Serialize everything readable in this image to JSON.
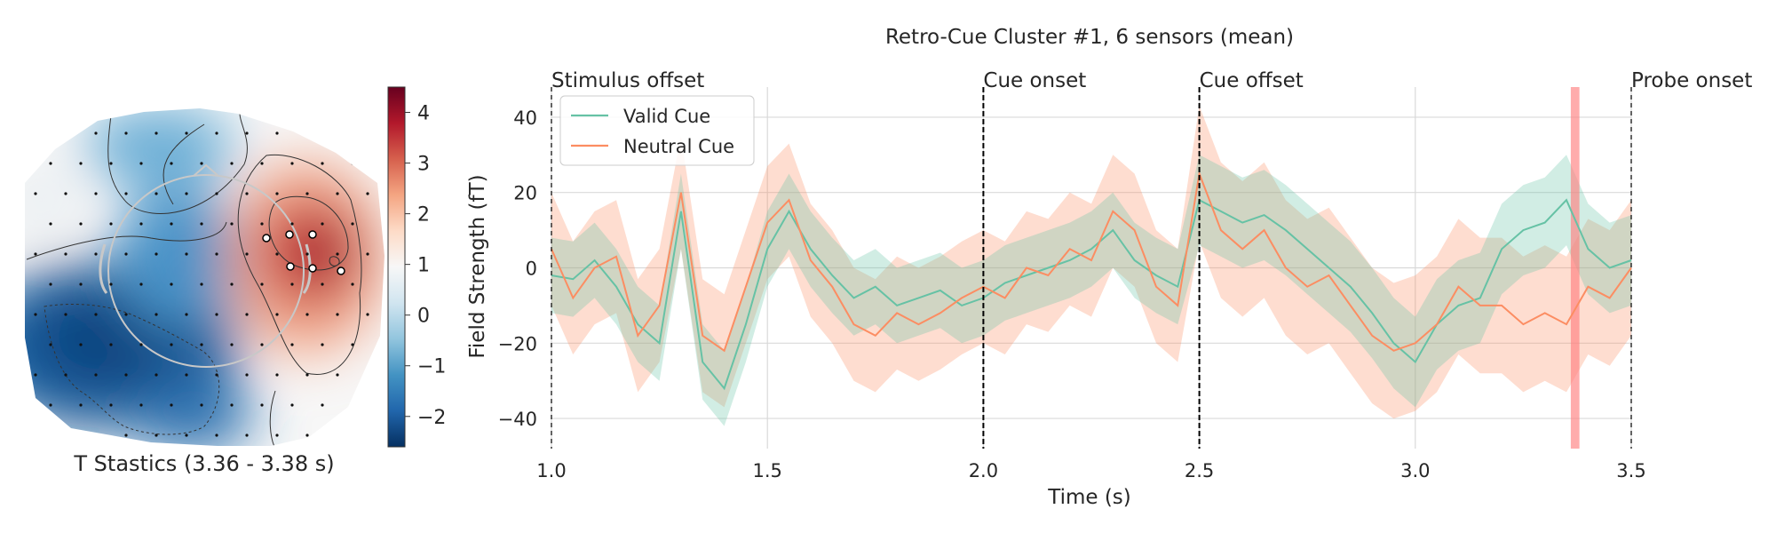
{
  "topomap": {
    "title": "T Stastics (3.36 - 3.38 s)",
    "colorbar_ticks": [
      -2,
      -1,
      0,
      1,
      2,
      3,
      4
    ],
    "colorbar_range": [
      -2.6,
      4.5
    ],
    "colormap": [
      "#053061",
      "#2166ac",
      "#4393c3",
      "#92c5de",
      "#d1e5f0",
      "#f7f7f7",
      "#fddbc7",
      "#f4a582",
      "#d6604d",
      "#b2182b",
      "#67001f"
    ]
  },
  "chart_data": {
    "type": "line",
    "title": "Retro-Cue Cluster #1, 6 sensors (mean)",
    "xlabel": "Time (s)",
    "ylabel": "Field Strength (fT)",
    "xlim": [
      1.0,
      3.5
    ],
    "ylim": [
      -48,
      48
    ],
    "xticks": [
      1.0,
      1.5,
      2.0,
      2.5,
      3.0,
      3.5
    ],
    "yticks": [
      -40,
      -20,
      0,
      20,
      40
    ],
    "grid": true,
    "legend_position": "top-left",
    "x": [
      1.0,
      1.05,
      1.1,
      1.15,
      1.2,
      1.25,
      1.3,
      1.35,
      1.4,
      1.45,
      1.5,
      1.55,
      1.6,
      1.65,
      1.7,
      1.75,
      1.8,
      1.85,
      1.9,
      1.95,
      2.0,
      2.05,
      2.1,
      2.15,
      2.2,
      2.25,
      2.3,
      2.35,
      2.4,
      2.45,
      2.5,
      2.55,
      2.6,
      2.65,
      2.7,
      2.75,
      2.8,
      2.85,
      2.9,
      2.95,
      3.0,
      3.05,
      3.1,
      3.15,
      3.2,
      3.25,
      3.3,
      3.35,
      3.4,
      3.45,
      3.5
    ],
    "series": [
      {
        "name": "Valid Cue",
        "color": "#66c2a5",
        "values": [
          -2,
          -3,
          2,
          -5,
          -15,
          -20,
          15,
          -25,
          -32,
          -15,
          5,
          15,
          5,
          -2,
          -8,
          -5,
          -10,
          -8,
          -6,
          -10,
          -8,
          -4,
          -2,
          0,
          2,
          5,
          10,
          2,
          -2,
          -5,
          18,
          15,
          12,
          14,
          10,
          5,
          0,
          -5,
          -12,
          -20,
          -25,
          -15,
          -10,
          -8,
          5,
          10,
          12,
          18,
          5,
          0,
          2
        ],
        "band": [
          10,
          10,
          10,
          10,
          10,
          10,
          10,
          10,
          10,
          10,
          10,
          10,
          10,
          10,
          10,
          10,
          10,
          10,
          10,
          10,
          10,
          10,
          10,
          10,
          10,
          10,
          10,
          10,
          10,
          10,
          12,
          12,
          12,
          12,
          12,
          12,
          12,
          12,
          12,
          12,
          12,
          12,
          12,
          12,
          12,
          12,
          12,
          12,
          12,
          12,
          12
        ]
      },
      {
        "name": "Neutral Cue",
        "color": "#fc8d62",
        "values": [
          5,
          -8,
          0,
          3,
          -18,
          -10,
          20,
          -18,
          -22,
          -5,
          12,
          18,
          2,
          -5,
          -15,
          -18,
          -12,
          -15,
          -12,
          -8,
          -5,
          -8,
          0,
          -2,
          5,
          2,
          15,
          10,
          -5,
          -10,
          25,
          10,
          5,
          10,
          0,
          -5,
          -2,
          -10,
          -18,
          -22,
          -20,
          -15,
          -5,
          -10,
          -10,
          -15,
          -12,
          -15,
          -5,
          -8,
          0
        ],
        "band": [
          15,
          15,
          15,
          15,
          15,
          15,
          15,
          15,
          15,
          15,
          15,
          15,
          15,
          15,
          15,
          15,
          15,
          15,
          15,
          15,
          15,
          15,
          15,
          15,
          15,
          15,
          15,
          15,
          15,
          15,
          18,
          18,
          18,
          18,
          18,
          18,
          18,
          18,
          18,
          18,
          18,
          18,
          18,
          18,
          18,
          18,
          18,
          18,
          18,
          18,
          18
        ]
      }
    ],
    "events": [
      {
        "x": 1.0,
        "label": "Stimulus offset"
      },
      {
        "x": 2.0,
        "label": "Cue onset"
      },
      {
        "x": 2.5,
        "label": "Cue offset"
      },
      {
        "x": 3.5,
        "label": "Probe onset"
      }
    ],
    "highlight": {
      "x0": 3.36,
      "x1": 3.38,
      "color": "#ff7f7f"
    }
  }
}
